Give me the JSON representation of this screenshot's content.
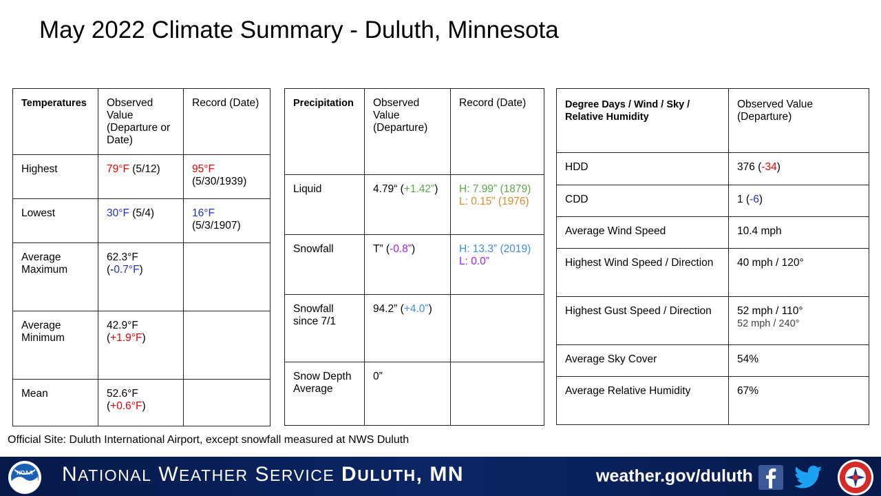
{
  "title": "May 2022 Climate Summary - Duluth, Minnesota",
  "temperatures": {
    "headers": [
      "Temperatures",
      "Observed Value (Departure or Date)",
      "Record (Date)"
    ],
    "highest": {
      "label": "Highest",
      "obs": "79°F",
      "obs_date": " (5/12)",
      "record": "95°F",
      "record_date": "(5/30/1939)"
    },
    "lowest": {
      "label": "Lowest",
      "obs": "30°F",
      "obs_date": " (5/4)",
      "record": "16°F",
      "record_date": "(5/3/1907)"
    },
    "avg_max": {
      "label": "Average Maximum",
      "obs_pre": "62.3°F (-",
      "obs_dep": "0.7°F",
      "obs_post": ")"
    },
    "avg_min": {
      "label": "Average Minimum",
      "obs": "42.9°F",
      "obs_pre": "(",
      "obs_dep": "+1.9°F",
      "obs_post": ")"
    },
    "mean": {
      "label": "Mean",
      "obs": "52.6°F",
      "obs_pre": "(",
      "obs_dep": "+0.6°F",
      "obs_post": ")"
    }
  },
  "precipitation": {
    "headers": [
      "Precipitation",
      "Observed Value (Departure)",
      "Record (Date)"
    ],
    "liquid": {
      "label": "Liquid",
      "obs_pre": "4.79“ (",
      "obs_dep": "+1.42”",
      "obs_post": ")",
      "rec_high": "H: 7.99” (1879)",
      "rec_low": "L: 0.15” (1976)"
    },
    "snowfall": {
      "label": "Snowfall",
      "obs_pre": "T” (",
      "obs_dep": "-0.8”",
      "obs_post": ")",
      "rec_high": "H: 13.3” (2019)",
      "rec_low": "L: 0.0”"
    },
    "snowfall_since": {
      "label": "Snowfall since 7/1",
      "obs_pre": "94.2” (",
      "obs_dep": "+4.0”",
      "obs_post": ")"
    },
    "snow_depth": {
      "label": "Snow Depth Average",
      "obs": "0”"
    }
  },
  "degree_days": {
    "headers": [
      "Degree Days / Wind / Sky / Relative Humidity",
      "Observed Value (Departure)"
    ],
    "hdd": {
      "label": "HDD",
      "obs_pre": "376 (",
      "obs_dep": "-34",
      "obs_post": ")"
    },
    "cdd": {
      "label": "CDD",
      "obs_pre": "1 (",
      "obs_dep": "-6",
      "obs_post": ")"
    },
    "avg_wind": {
      "label": "Average Wind Speed",
      "obs": "10.4 mph"
    },
    "high_wind": {
      "label": "Highest Wind Speed / Direction",
      "obs": "40 mph / 120°"
    },
    "high_gust": {
      "label": "Highest Gust Speed / Direction",
      "obs": "52 mph / 110°",
      "obs2": "52 mph / 240°"
    },
    "sky": {
      "label": "Average Sky Cover",
      "obs": "54%"
    },
    "rh": {
      "label": "Average Relative Humidity",
      "obs": "67%"
    }
  },
  "site_note": "Official Site: Duluth International Airport, except snowfall measured at NWS Duluth",
  "footer": {
    "nws_n": "N",
    "nws_ational": "ATIONAL",
    "nws_w": " W",
    "nws_eather": "EATHER",
    "nws_s": " S",
    "nws_ervice": "ERVICE",
    "duluth_d": " D",
    "duluth_rest": "ULUTH",
    "mn": ", MN",
    "url": "weather.gov/duluth",
    "noaa_logo_text": "NOAA",
    "icons": [
      "noaa-logo-icon",
      "facebook-icon",
      "twitter-icon",
      "nws-logo-icon"
    ]
  },
  "colors": {
    "warm": "#e60000",
    "cold": "#1f2ec7",
    "record_high_precip": "#5aa84a",
    "record_low_precip": "#e08a2c",
    "record_high_snow": "#3d8fe0",
    "record_low_snow": "#a020f0",
    "footer_bg": "#0b2664"
  }
}
